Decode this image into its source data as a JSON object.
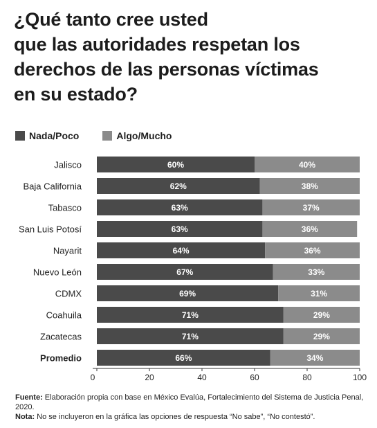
{
  "title_lines": [
    "¿Qué tanto cree usted",
    "que las autoridades respetan los",
    "derechos de las personas víctimas",
    "en su estado?"
  ],
  "colors": {
    "series_1": "#4a4a4a",
    "series_2": "#8b8b8b",
    "label": "#ffffff"
  },
  "chart_data": {
    "type": "bar",
    "orientation": "horizontal",
    "stacked": true,
    "title": "¿Qué tanto cree usted que las autoridades respetan los derechos de las personas víctimas en su estado?",
    "categories": [
      "Jalisco",
      "Baja California",
      "Tabasco",
      "San Luis Potosí",
      "Nayarit",
      "Nuevo León",
      "CDMX",
      "Coahuila",
      "Zacatecas",
      "Promedio"
    ],
    "bold_categories": [
      "Promedio"
    ],
    "series": [
      {
        "name": "Nada/Poco",
        "values": [
          60,
          62,
          63,
          63,
          64,
          67,
          69,
          71,
          71,
          66
        ],
        "labels": [
          "60%",
          "62%",
          "63%",
          "63%",
          "64%",
          "67%",
          "69%",
          "71%",
          "71%",
          "66%"
        ]
      },
      {
        "name": "Algo/Mucho",
        "values": [
          40,
          38,
          37,
          36,
          36,
          33,
          31,
          29,
          29,
          34
        ],
        "labels": [
          "40%",
          "38%",
          "37%",
          "36%",
          "36%",
          "33%",
          "31%",
          "29%",
          "29%",
          "34%"
        ]
      }
    ],
    "xlim": [
      0,
      100
    ],
    "x_ticks": [
      "0",
      "20",
      "40",
      "60",
      "80",
      "100"
    ],
    "legend_position": "top-left",
    "grid": false
  },
  "footer": {
    "source_label": "Fuente:",
    "source_text": " Elaboración propia con base en México Evalúa, Fortalecimiento del Sistema de Justicia Penal, 2020.",
    "note_label": "Nota:",
    "note_text": " No se incluyeron en la gráfica las opciones de respuesta “No sabe”, “No contestó”."
  }
}
